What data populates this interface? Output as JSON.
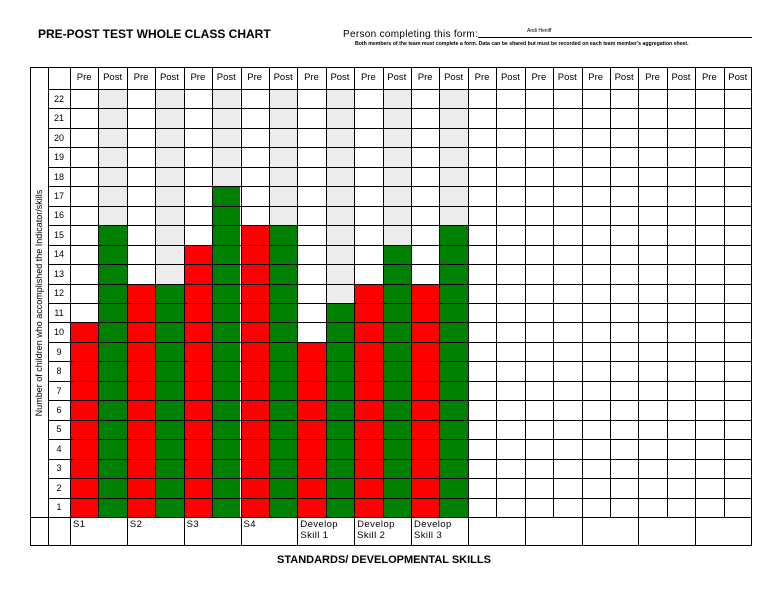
{
  "title": "PRE-POST TEST WHOLE CLASS CHART",
  "form": {
    "label": "Person completing this form:",
    "signature": "Andi Heniff",
    "note": "Both members of the team must complete a form.  Data can be shared but must be recorded on each team member's aggregation sheet."
  },
  "chart_data": {
    "type": "bar",
    "ylabel": "Number of children who accomplished the Indicator/skills",
    "xlabel": "STANDARDS/ DEVELOPMENTAL SKILLS",
    "categories": [
      "S1",
      "S2",
      "S3",
      "S4",
      "Develop Skill 1",
      "Develop Skill 2",
      "Develop Skill 3",
      null,
      null,
      null,
      null,
      null
    ],
    "series": [
      {
        "name": "Pre",
        "color": "#ff0000",
        "values": [
          10,
          12,
          14,
          15,
          9,
          12,
          12,
          null,
          null,
          null,
          null,
          null
        ]
      },
      {
        "name": "Post",
        "color": "#008000",
        "values": [
          15,
          12,
          17,
          15,
          11,
          14,
          15,
          null,
          null,
          null,
          null,
          null
        ]
      }
    ],
    "ylim": [
      0,
      22
    ],
    "yticks": [
      1,
      2,
      3,
      4,
      5,
      6,
      7,
      8,
      9,
      10,
      11,
      12,
      13,
      14,
      15,
      16,
      17,
      18,
      19,
      20,
      21,
      22
    ],
    "grid": true
  }
}
